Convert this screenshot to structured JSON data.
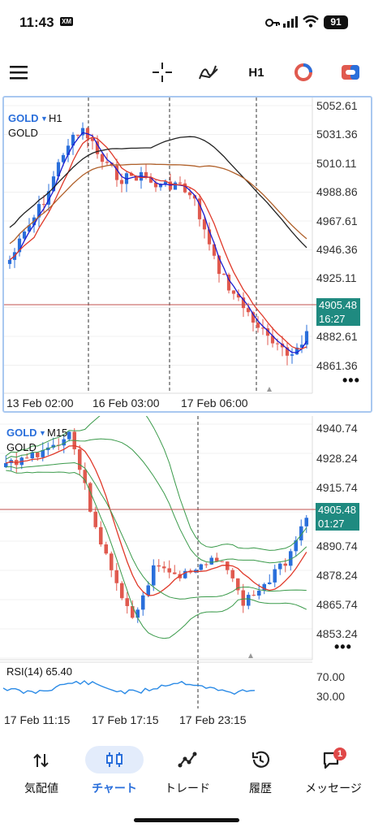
{
  "status": {
    "time": "11:43",
    "carrier": "XM",
    "battery": "91"
  },
  "toolbar": {
    "timeframe": "H1"
  },
  "chart_top": {
    "symbol": "GOLD",
    "timeframe": "H1",
    "name": "GOLD",
    "prices": [
      "5052.61",
      "5031.36",
      "5010.11",
      "4988.86",
      "4967.61",
      "4946.36",
      "4925.11",
      "4882.61",
      "4861.36"
    ],
    "current_price": "4905.48",
    "countdown": "16:27",
    "times": [
      "13 Feb 02:00",
      "16 Feb 03:00",
      "17 Feb 06:00"
    ]
  },
  "chart_bottom": {
    "symbol": "GOLD",
    "timeframe": "M15",
    "name": "GOLD",
    "prices": [
      "4940.74",
      "4928.24",
      "4915.74",
      "4890.74",
      "4878.24",
      "4865.74",
      "4853.24"
    ],
    "current_price": "4905.48",
    "countdown": "01:27",
    "rsi_label": "RSI(14) 65.40",
    "rsi_levels": [
      "70.00",
      "30.00"
    ],
    "times": [
      "17 Feb 11:15",
      "17 Feb 17:15",
      "17 Feb 23:15"
    ]
  },
  "nav": {
    "items": [
      {
        "label": "気配値",
        "icon": "arrows-updown-icon"
      },
      {
        "label": "チャート",
        "icon": "candles-icon"
      },
      {
        "label": "トレード",
        "icon": "trade-line-icon"
      },
      {
        "label": "履歴",
        "icon": "history-icon"
      },
      {
        "label": "メッセージ",
        "icon": "message-icon",
        "badge": "1"
      }
    ]
  },
  "colors": {
    "up": "#2a6fdb",
    "down": "#e05a4f",
    "accent": "#2a6fdb",
    "price_tag": "#1f8a80",
    "active_nav_bg": "#e3ecfb"
  }
}
